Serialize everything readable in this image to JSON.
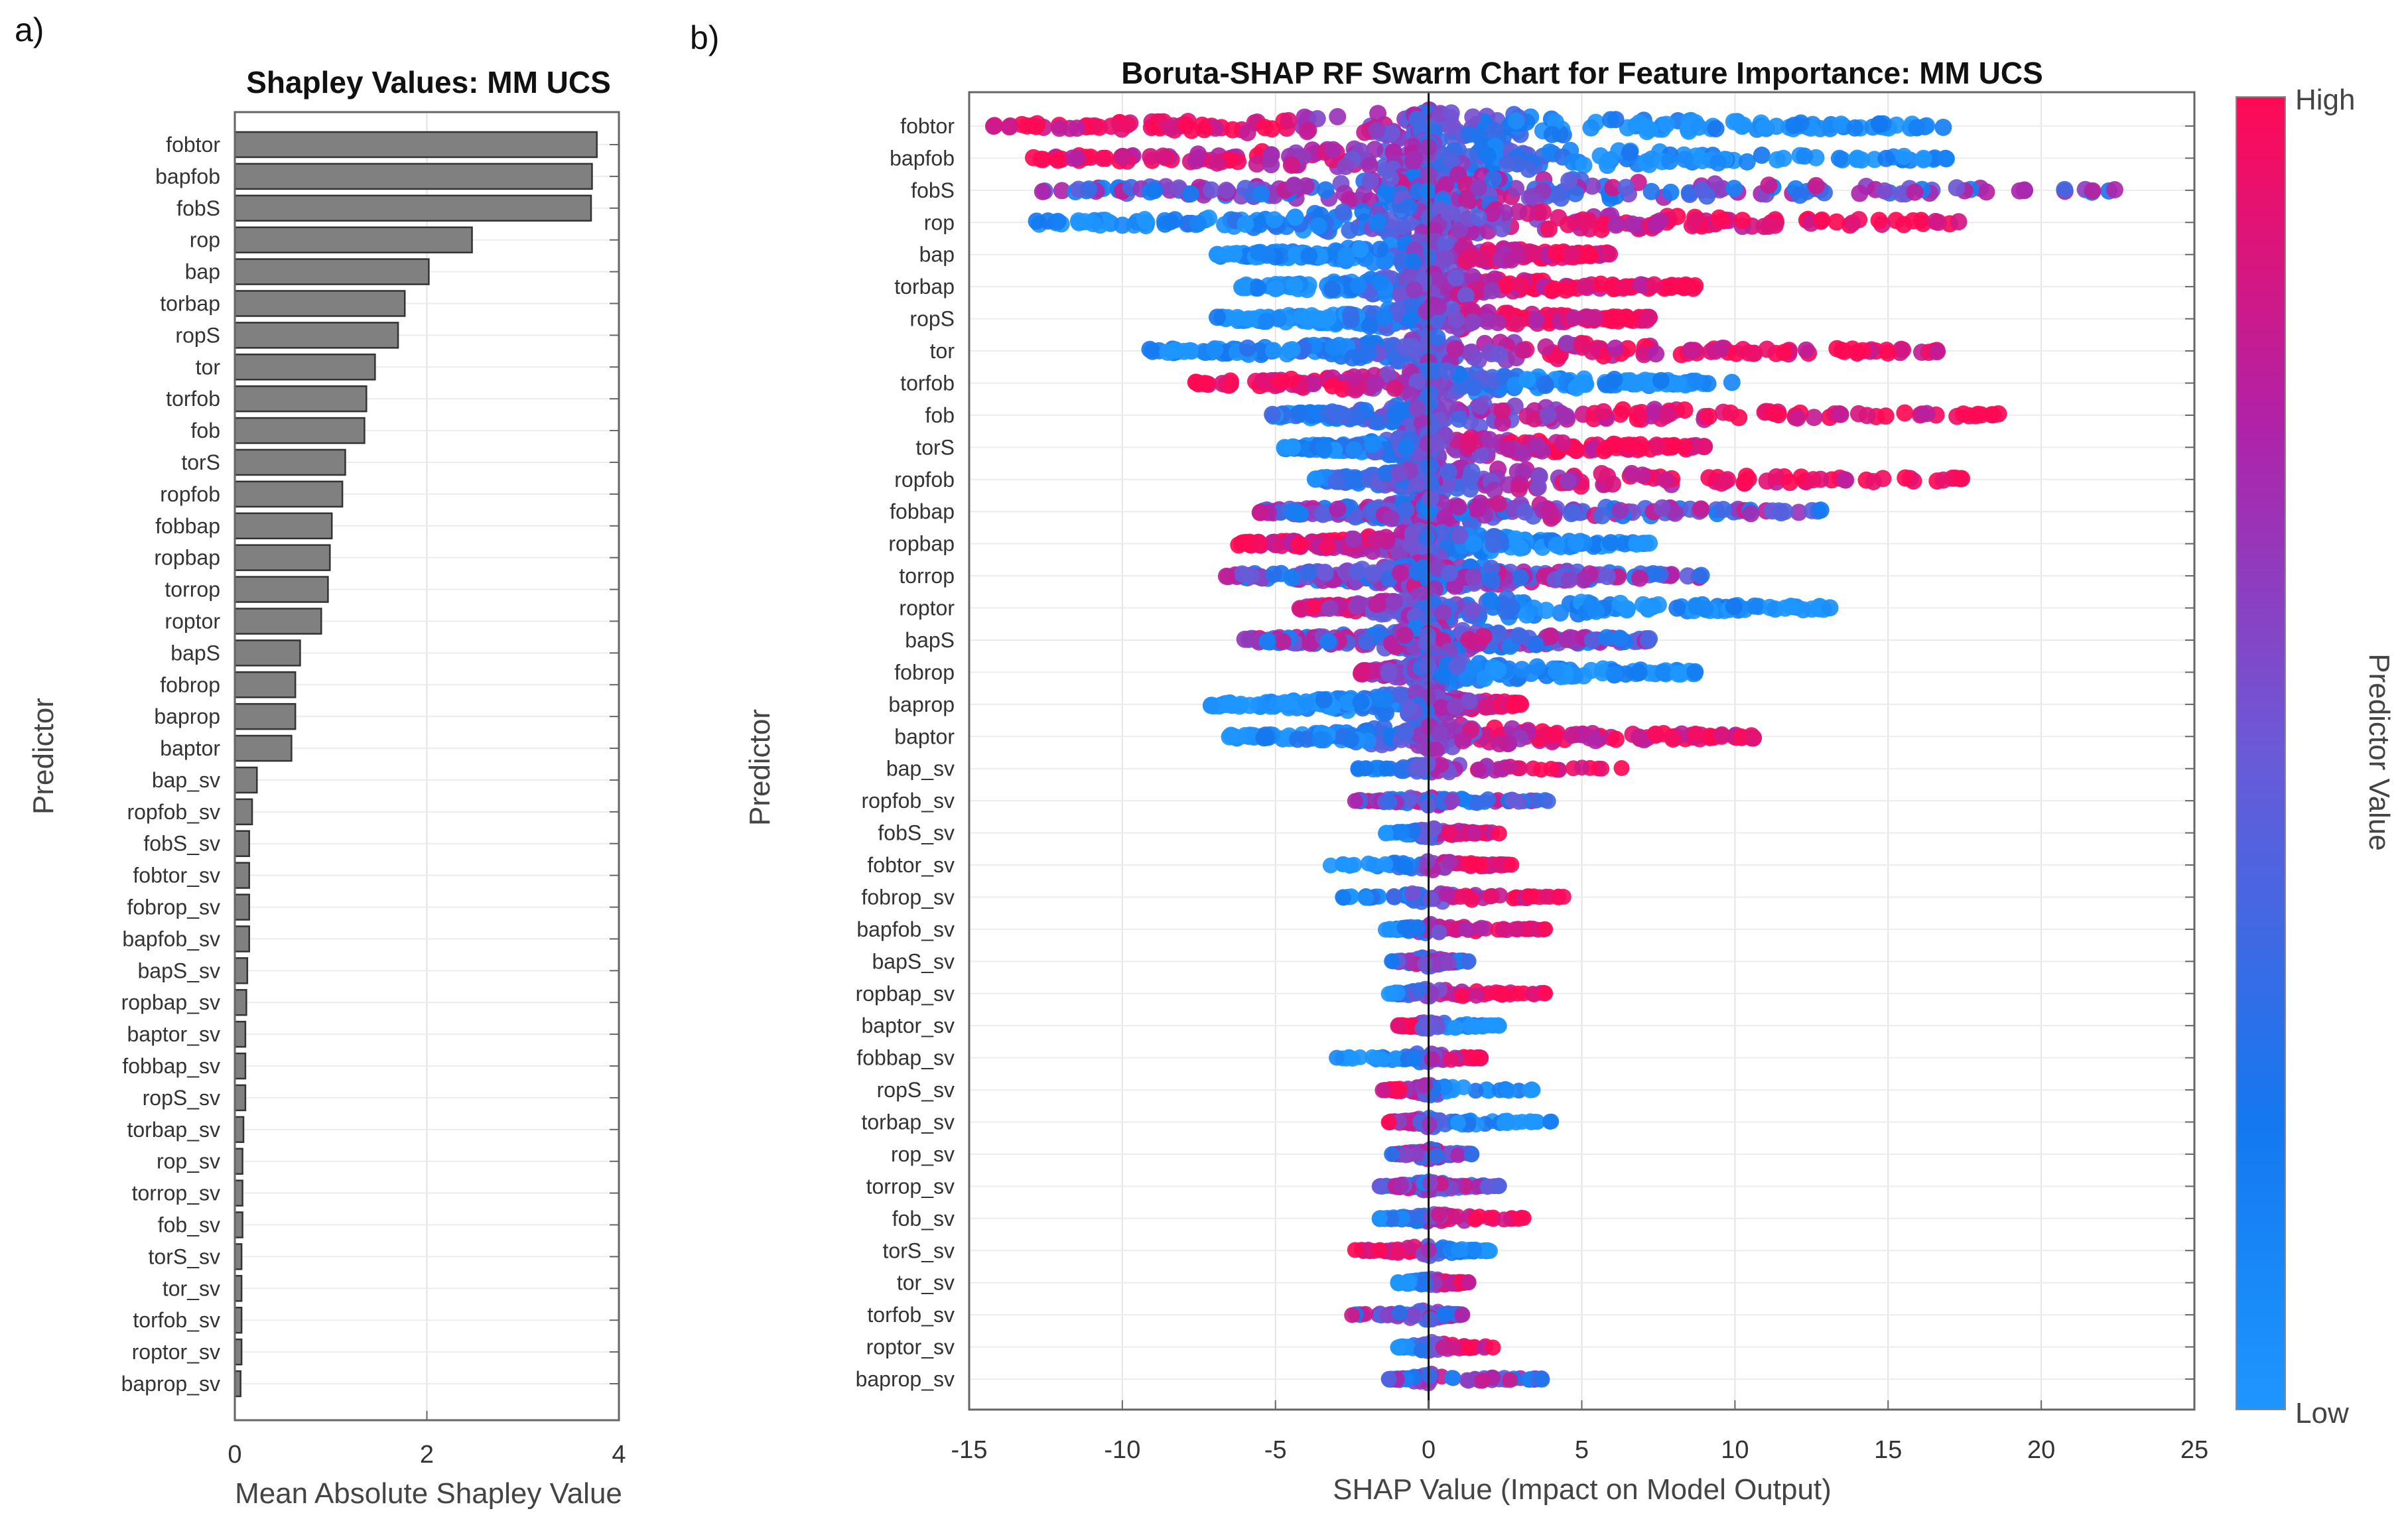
{
  "panel_labels": {
    "a": "a)",
    "b": "b)"
  },
  "chart_data": [
    {
      "type": "bar",
      "orientation": "horizontal",
      "title": "Shapley Values: MM UCS",
      "xlabel": "Mean Absolute Shapley Value",
      "ylabel": "Predictor",
      "xlim": [
        0,
        4
      ],
      "xticks": [
        "0",
        "2",
        "4"
      ],
      "grid": true,
      "bar_color": "#808080",
      "categories": [
        "fobtor",
        "bapfob",
        "fobS",
        "rop",
        "bap",
        "torbap",
        "ropS",
        "tor",
        "torfob",
        "fob",
        "torS",
        "ropfob",
        "fobbap",
        "ropbap",
        "torrop",
        "roptor",
        "bapS",
        "fobrop",
        "baprop",
        "baptor",
        "bap_sv",
        "ropfob_sv",
        "fobS_sv",
        "fobtor_sv",
        "fobrop_sv",
        "bapfob_sv",
        "bapS_sv",
        "ropbap_sv",
        "baptor_sv",
        "fobbap_sv",
        "ropS_sv",
        "torbap_sv",
        "rop_sv",
        "torrop_sv",
        "fob_sv",
        "torS_sv",
        "tor_sv",
        "torfob_sv",
        "roptor_sv",
        "baprop_sv"
      ],
      "values": [
        3.77,
        3.72,
        3.71,
        2.47,
        2.02,
        1.77,
        1.7,
        1.46,
        1.37,
        1.35,
        1.15,
        1.12,
        1.01,
        0.99,
        0.97,
        0.9,
        0.68,
        0.63,
        0.63,
        0.59,
        0.23,
        0.18,
        0.15,
        0.15,
        0.15,
        0.15,
        0.13,
        0.12,
        0.11,
        0.11,
        0.11,
        0.09,
        0.08,
        0.08,
        0.08,
        0.07,
        0.07,
        0.07,
        0.07,
        0.06
      ]
    },
    {
      "type": "scatter",
      "subtype": "swarm",
      "title": "Boruta-SHAP RF Swarm Chart for Feature Importance: MM UCS",
      "xlabel": "SHAP Value (Impact on Model Output)",
      "ylabel": "Predictor",
      "xlim": [
        -15,
        25
      ],
      "xticks": [
        "-15",
        "-10",
        "-5",
        "0",
        "5",
        "10",
        "15",
        "20",
        "25"
      ],
      "grid": true,
      "colorbar": {
        "label": "Predictor Value",
        "high": "High",
        "low": "Low",
        "colors": [
          "#1e96ff",
          "#1478f0",
          "#6a5ad8",
          "#b022a8",
          "#ff0a55"
        ]
      },
      "features": [
        {
          "name": "fobtor",
          "range": [
            -14.2,
            16.8
          ],
          "high_side": "left"
        },
        {
          "name": "bapfob",
          "range": [
            -12.9,
            16.9
          ],
          "high_side": "left"
        },
        {
          "name": "fobS",
          "range": [
            -12.6,
            22.4
          ],
          "high_side": "mixed"
        },
        {
          "name": "rop",
          "range": [
            -12.8,
            17.3
          ],
          "high_side": "right"
        },
        {
          "name": "bap",
          "range": [
            -6.9,
            5.9
          ],
          "high_side": "right"
        },
        {
          "name": "torbap",
          "range": [
            -6.1,
            8.7
          ],
          "high_side": "right"
        },
        {
          "name": "ropS",
          "range": [
            -6.9,
            7.2
          ],
          "high_side": "right"
        },
        {
          "name": "tor",
          "range": [
            -9.1,
            16.6
          ],
          "high_side": "right"
        },
        {
          "name": "torfob",
          "range": [
            -7.6,
            9.9
          ],
          "high_side": "left"
        },
        {
          "name": "fob",
          "range": [
            -5.1,
            18.6
          ],
          "high_side": "right"
        },
        {
          "name": "torS",
          "range": [
            -4.7,
            9.0
          ],
          "high_side": "right"
        },
        {
          "name": "ropfob",
          "range": [
            -3.7,
            17.4
          ],
          "high_side": "right"
        },
        {
          "name": "fobbap",
          "range": [
            -5.5,
            12.8
          ],
          "high_side": "mixed"
        },
        {
          "name": "ropbap",
          "range": [
            -6.2,
            7.2
          ],
          "high_side": "left"
        },
        {
          "name": "torrop",
          "range": [
            -6.6,
            8.9
          ],
          "high_side": "mixed"
        },
        {
          "name": "roptor",
          "range": [
            -4.2,
            13.1
          ],
          "high_side": "left"
        },
        {
          "name": "bapS",
          "range": [
            -6.0,
            7.2
          ],
          "high_side": "mixed"
        },
        {
          "name": "fobrop",
          "range": [
            -2.2,
            8.7
          ],
          "high_side": "left"
        },
        {
          "name": "baprop",
          "range": [
            -7.1,
            3.0
          ],
          "high_side": "right"
        },
        {
          "name": "baptor",
          "range": [
            -6.5,
            10.6
          ],
          "high_side": "right"
        },
        {
          "name": "bap_sv",
          "range": [
            -2.3,
            6.3
          ],
          "high_side": "right"
        },
        {
          "name": "ropfob_sv",
          "range": [
            -2.4,
            3.9
          ],
          "high_side": "mixed"
        },
        {
          "name": "fobS_sv",
          "range": [
            -1.4,
            2.3
          ],
          "high_side": "right"
        },
        {
          "name": "fobtor_sv",
          "range": [
            -3.2,
            2.7
          ],
          "high_side": "right"
        },
        {
          "name": "fobrop_sv",
          "range": [
            -2.8,
            4.4
          ],
          "high_side": "right"
        },
        {
          "name": "bapfob_sv",
          "range": [
            -1.4,
            3.8
          ],
          "high_side": "right"
        },
        {
          "name": "bapS_sv",
          "range": [
            -1.2,
            1.3
          ],
          "high_side": "mixed"
        },
        {
          "name": "ropbap_sv",
          "range": [
            -1.3,
            3.8
          ],
          "high_side": "right"
        },
        {
          "name": "baptor_sv",
          "range": [
            -1.0,
            2.3
          ],
          "high_side": "left"
        },
        {
          "name": "fobbap_sv",
          "range": [
            -3.0,
            1.7
          ],
          "high_side": "right"
        },
        {
          "name": "ropS_sv",
          "range": [
            -1.5,
            3.4
          ],
          "high_side": "left"
        },
        {
          "name": "torbap_sv",
          "range": [
            -1.3,
            4.0
          ],
          "high_side": "left"
        },
        {
          "name": "rop_sv",
          "range": [
            -1.2,
            1.4
          ],
          "high_side": "mixed"
        },
        {
          "name": "torrop_sv",
          "range": [
            -1.6,
            2.3
          ],
          "high_side": "mixed"
        },
        {
          "name": "fob_sv",
          "range": [
            -1.6,
            3.1
          ],
          "high_side": "right"
        },
        {
          "name": "torS_sv",
          "range": [
            -2.4,
            2.0
          ],
          "high_side": "left"
        },
        {
          "name": "tor_sv",
          "range": [
            -1.0,
            1.3
          ],
          "high_side": "right"
        },
        {
          "name": "torfob_sv",
          "range": [
            -2.5,
            1.1
          ],
          "high_side": "mixed"
        },
        {
          "name": "roptor_sv",
          "range": [
            -1.0,
            2.1
          ],
          "high_side": "right"
        },
        {
          "name": "baprop_sv",
          "range": [
            -1.3,
            3.7
          ],
          "high_side": "mixed"
        }
      ]
    }
  ]
}
